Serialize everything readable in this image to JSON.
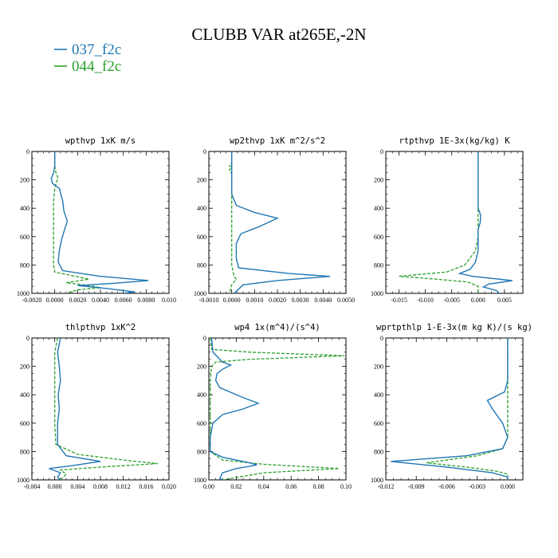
{
  "title": "CLUBB VAR at265E,-2N",
  "legend": [
    {
      "label": "037_f2c",
      "color": "#1f77b4",
      "dash": "solid"
    },
    {
      "label": "044_f2c",
      "color": "#2ca02c",
      "dash": "dashed"
    }
  ],
  "chart_data": [
    {
      "type": "line",
      "title": "wpthvp  1xK m/s",
      "xlim": [
        -0.002,
        0.01
      ],
      "ylim": [
        1000,
        0
      ],
      "xticks": [
        -0.002,
        0,
        0.002,
        0.004,
        0.006,
        0.008,
        0.01
      ],
      "xtick_labels": [
        "-0.0020",
        "0.0000",
        "0.0020",
        "0.0040",
        "0.0060",
        "0.0080",
        "0.010"
      ],
      "yticks": [
        0,
        200,
        400,
        600,
        800,
        1000
      ],
      "ytick_labels": [
        "0",
        "200",
        "400",
        "600",
        "800",
        "1000"
      ],
      "series": [
        {
          "name": "037_f2c",
          "points": [
            [
              0,
              0
            ],
            [
              0,
              100
            ],
            [
              -0.0001,
              150
            ],
            [
              -0.0003,
              190
            ],
            [
              -0.0002,
              225
            ],
            [
              0.0004,
              260
            ],
            [
              0.0007,
              350
            ],
            [
              0.0008,
              420
            ],
            [
              0.0011,
              490
            ],
            [
              0.0009,
              540
            ],
            [
              0.0006,
              620
            ],
            [
              0.0004,
              700
            ],
            [
              0.0003,
              780
            ],
            [
              0.0007,
              840
            ],
            [
              0.004,
              880
            ],
            [
              0.0082,
              910
            ],
            [
              0.005,
              930
            ],
            [
              0.002,
              945
            ],
            [
              0.0045,
              965
            ],
            [
              0.007,
              990
            ],
            [
              0.006,
              1000
            ]
          ]
        },
        {
          "name": "044_f2c",
          "points": [
            [
              0,
              0
            ],
            [
              0,
              100
            ],
            [
              0.0001,
              150
            ],
            [
              0.0003,
              190
            ],
            [
              0.0001,
              225
            ],
            [
              0,
              260
            ],
            [
              -0.0001,
              350
            ],
            [
              -0.0001,
              500
            ],
            [
              -0.0001,
              700
            ],
            [
              -0.0001,
              800
            ],
            [
              0,
              850
            ],
            [
              0.003,
              900
            ],
            [
              0.001,
              925
            ],
            [
              0.003,
              945
            ],
            [
              0.004,
              960
            ],
            [
              0.002,
              975
            ],
            [
              0.001,
              1000
            ]
          ]
        }
      ]
    },
    {
      "type": "line",
      "title": "wp2thvp  1xK m^2/s^2",
      "xlim": [
        -0.001,
        0.005
      ],
      "ylim": [
        1000,
        0
      ],
      "xticks": [
        -0.001,
        0,
        0.001,
        0.002,
        0.003,
        0.004,
        0.005
      ],
      "xtick_labels": [
        "-0.0010",
        "0.0000",
        "0.0010",
        "0.0020",
        "0.0030",
        "0.0040",
        "0.0050"
      ],
      "yticks": [
        0,
        200,
        400,
        600,
        800,
        1000
      ],
      "ytick_labels": [
        "0",
        "200",
        "400",
        "600",
        "800",
        "1000"
      ],
      "series": [
        {
          "name": "037_f2c",
          "points": [
            [
              0,
              0
            ],
            [
              0,
              100
            ],
            [
              0,
              200
            ],
            [
              0,
              300
            ],
            [
              0.0002,
              380
            ],
            [
              0.001,
              430
            ],
            [
              0.002,
              470
            ],
            [
              0.0012,
              530
            ],
            [
              0.0004,
              580
            ],
            [
              0.0002,
              650
            ],
            [
              0.0002,
              750
            ],
            [
              0.0003,
              820
            ],
            [
              0.0025,
              860
            ],
            [
              0.0043,
              880
            ],
            [
              0.002,
              910
            ],
            [
              0.0005,
              940
            ],
            [
              0.0001,
              1000
            ]
          ]
        },
        {
          "name": "044_f2c",
          "points": [
            [
              0,
              0
            ],
            [
              0,
              80
            ],
            [
              -0.0001,
              100
            ],
            [
              0,
              110
            ],
            [
              -0.0001,
              130
            ],
            [
              0,
              160
            ],
            [
              0,
              300
            ],
            [
              0,
              500
            ],
            [
              0,
              700
            ],
            [
              0,
              800
            ],
            [
              0.0001,
              880
            ],
            [
              0.0002,
              900
            ],
            [
              0,
              940
            ],
            [
              -0.0001,
              1000
            ]
          ]
        }
      ]
    },
    {
      "type": "line",
      "title": "rtpthvp  1E-3x(kg/kg) K",
      "xlim": [
        -0.0175,
        0.0085
      ],
      "ylim": [
        1000,
        0
      ],
      "xticks": [
        -0.015,
        -0.01,
        -0.005,
        0,
        0.005
      ],
      "xtick_labels": [
        "-0.015",
        "-0.010",
        "-0.005",
        "0.000",
        "0.005"
      ],
      "yticks": [
        0,
        200,
        400,
        600,
        800,
        1000
      ],
      "ytick_labels": [
        "0",
        "200",
        "400",
        "600",
        "800",
        "1000"
      ],
      "series": [
        {
          "name": "037_f2c",
          "points": [
            [
              0,
              0
            ],
            [
              0,
              200
            ],
            [
              0,
              400
            ],
            [
              0.0005,
              450
            ],
            [
              0.0004,
              500
            ],
            [
              0,
              550
            ],
            [
              0,
              700
            ],
            [
              -0.0005,
              780
            ],
            [
              -0.0015,
              830
            ],
            [
              -0.0035,
              860
            ],
            [
              -0.001,
              880
            ],
            [
              0.0065,
              910
            ],
            [
              0.002,
              935
            ],
            [
              0.001,
              955
            ],
            [
              0.0035,
              980
            ],
            [
              0.004,
              1000
            ]
          ]
        },
        {
          "name": "044_f2c",
          "points": [
            [
              0,
              0
            ],
            [
              0,
              200
            ],
            [
              0,
              400
            ],
            [
              0,
              500
            ],
            [
              0,
              600
            ],
            [
              -0.0005,
              700
            ],
            [
              -0.0025,
              800
            ],
            [
              -0.006,
              850
            ],
            [
              -0.015,
              880
            ],
            [
              -0.008,
              900
            ],
            [
              -0.002,
              920
            ],
            [
              0,
              950
            ],
            [
              0,
              1000
            ]
          ]
        }
      ]
    },
    {
      "type": "line",
      "title": "thlpthvp  1xK^2",
      "xlim": [
        -0.004,
        0.02
      ],
      "ylim": [
        1000,
        0
      ],
      "xticks": [
        -0.004,
        0,
        0.004,
        0.008,
        0.012,
        0.016,
        0.02
      ],
      "xtick_labels": [
        "-0.004",
        "0.000",
        "0.004",
        "0.008",
        "0.012",
        "0.016",
        "0.020"
      ],
      "yticks": [
        0,
        200,
        400,
        600,
        800,
        1000
      ],
      "ytick_labels": [
        "0",
        "200",
        "400",
        "600",
        "800",
        "1000"
      ],
      "series": [
        {
          "name": "037_f2c",
          "points": [
            [
              0.001,
              0
            ],
            [
              0.0005,
              100
            ],
            [
              0.0008,
              200
            ],
            [
              0.001,
              300
            ],
            [
              0.0006,
              400
            ],
            [
              0.0008,
              500
            ],
            [
              0.0005,
              600
            ],
            [
              0.0005,
              750
            ],
            [
              0.002,
              830
            ],
            [
              0.008,
              870
            ],
            [
              0.003,
              900
            ],
            [
              -0.001,
              920
            ],
            [
              0.001,
              950
            ],
            [
              0.0005,
              980
            ],
            [
              0.001,
              1000
            ]
          ]
        },
        {
          "name": "044_f2c",
          "points": [
            [
              0.0005,
              0
            ],
            [
              0,
              100
            ],
            [
              0,
              200
            ],
            [
              0,
              300
            ],
            [
              0,
              400
            ],
            [
              0,
              600
            ],
            [
              0.0002,
              750
            ],
            [
              0.004,
              820
            ],
            [
              0.012,
              860
            ],
            [
              0.018,
              885
            ],
            [
              0.008,
              910
            ],
            [
              0.001,
              930
            ],
            [
              0.002,
              960
            ],
            [
              0.001,
              1000
            ]
          ]
        }
      ]
    },
    {
      "type": "line",
      "title": "wp4  1x(m^4)/(s^4)",
      "xlim": [
        0,
        0.1
      ],
      "ylim": [
        1000,
        0
      ],
      "xticks": [
        0,
        0.02,
        0.04,
        0.06,
        0.08,
        0.1
      ],
      "xtick_labels": [
        "0.00",
        "0.02",
        "0.04",
        "0.06",
        "0.08",
        "0.10"
      ],
      "yticks": [
        0,
        200,
        400,
        600,
        800,
        1000
      ],
      "ytick_labels": [
        "0",
        "200",
        "400",
        "600",
        "800",
        "1000"
      ],
      "series": [
        {
          "name": "037_f2c",
          "points": [
            [
              0.002,
              0
            ],
            [
              0.003,
              100
            ],
            [
              0.005,
              120
            ],
            [
              0.01,
              170
            ],
            [
              0.016,
              190
            ],
            [
              0.01,
              220
            ],
            [
              0.006,
              250
            ],
            [
              0.005,
              300
            ],
            [
              0.008,
              350
            ],
            [
              0.025,
              420
            ],
            [
              0.036,
              460
            ],
            [
              0.025,
              500
            ],
            [
              0.01,
              540
            ],
            [
              0.003,
              600
            ],
            [
              0.001,
              700
            ],
            [
              0.001,
              800
            ],
            [
              0.01,
              840
            ],
            [
              0.03,
              880
            ],
            [
              0.035,
              895
            ],
            [
              0.02,
              920
            ],
            [
              0.01,
              950
            ],
            [
              0.008,
              990
            ],
            [
              0.01,
              1000
            ]
          ]
        },
        {
          "name": "044_f2c",
          "points": [
            [
              0.001,
              0
            ],
            [
              0.002,
              80
            ],
            [
              0.03,
              100
            ],
            [
              0.099,
              125
            ],
            [
              0.03,
              150
            ],
            [
              0.005,
              170
            ],
            [
              0.002,
              200
            ],
            [
              0.001,
              300
            ],
            [
              0.001,
              500
            ],
            [
              0.001,
              700
            ],
            [
              0.001,
              800
            ],
            [
              0.01,
              860
            ],
            [
              0.04,
              890
            ],
            [
              0.095,
              920
            ],
            [
              0.04,
              950
            ],
            [
              0.01,
              1000
            ]
          ]
        }
      ]
    },
    {
      "type": "line",
      "title": "wprtpthlp  1-E-3x(m kg K)/(s kg)",
      "xlim": [
        -0.012,
        0.0015
      ],
      "ylim": [
        1000,
        0
      ],
      "xticks": [
        -0.012,
        -0.009,
        -0.006,
        -0.003,
        0
      ],
      "xtick_labels": [
        "-0.012",
        "-0.009",
        "-0.006",
        "-0.003",
        "0.000"
      ],
      "yticks": [
        0,
        200,
        400,
        600,
        800,
        1000
      ],
      "ytick_labels": [
        "0",
        "200",
        "400",
        "600",
        "800",
        "1000"
      ],
      "series": [
        {
          "name": "037_f2c",
          "points": [
            [
              0,
              0
            ],
            [
              0,
              200
            ],
            [
              0,
              300
            ],
            [
              -0.0003,
              380
            ],
            [
              -0.002,
              440
            ],
            [
              -0.0015,
              500
            ],
            [
              -0.0005,
              600
            ],
            [
              0,
              700
            ],
            [
              -0.0005,
              780
            ],
            [
              -0.004,
              830
            ],
            [
              -0.0115,
              870
            ],
            [
              -0.006,
              910
            ],
            [
              -0.0015,
              950
            ],
            [
              0,
              980
            ],
            [
              0,
              1000
            ]
          ]
        },
        {
          "name": "044_f2c",
          "points": [
            [
              0,
              0
            ],
            [
              0,
              200
            ],
            [
              0,
              400
            ],
            [
              0,
              600
            ],
            [
              0,
              700
            ],
            [
              -0.0005,
              780
            ],
            [
              -0.003,
              830
            ],
            [
              -0.008,
              880
            ],
            [
              -0.004,
              910
            ],
            [
              -0.001,
              940
            ],
            [
              0,
              960
            ],
            [
              0,
              1000
            ]
          ]
        }
      ]
    }
  ]
}
